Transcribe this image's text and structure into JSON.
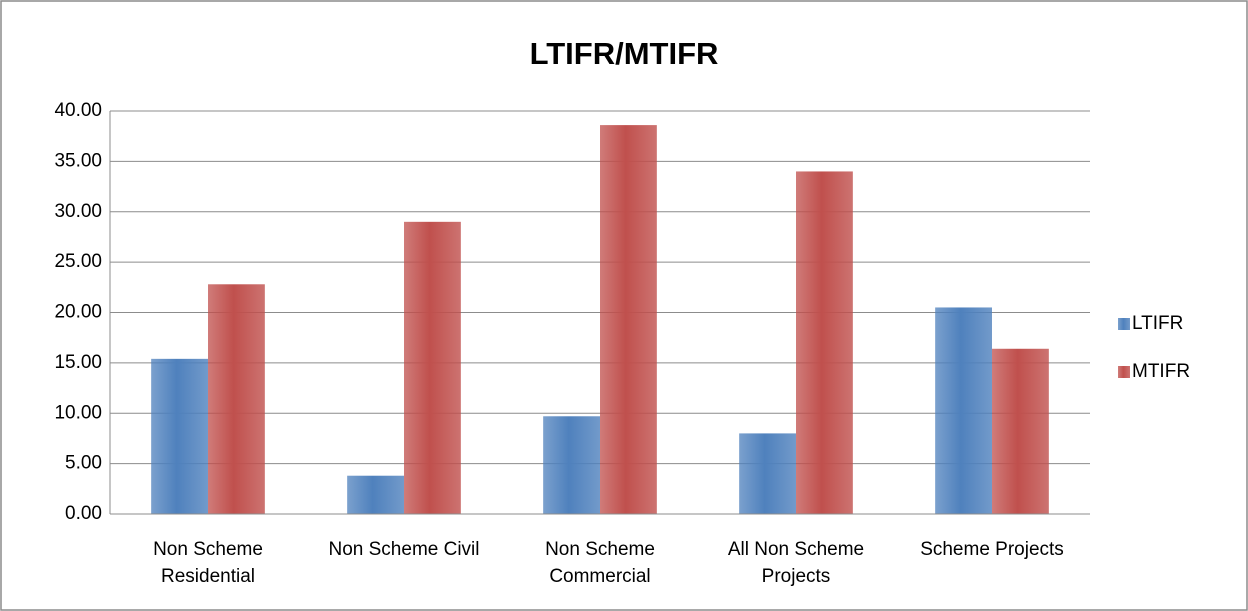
{
  "chart_data": {
    "type": "bar",
    "title": "LTIFR/MTIFR",
    "categories": [
      "Non Scheme Residential",
      "Non Scheme Civil",
      "Non Scheme Commercial",
      "All Non Scheme Projects",
      "Scheme Projects"
    ],
    "series": [
      {
        "name": "LTIFR",
        "color": "#4f81bd",
        "values": [
          15.4,
          3.8,
          9.7,
          8.0,
          20.5
        ]
      },
      {
        "name": "MTIFR",
        "color": "#c0504d",
        "values": [
          22.8,
          29.0,
          38.6,
          34.0,
          16.4
        ]
      }
    ],
    "ylim": [
      0,
      40
    ],
    "yticks": [
      {
        "value": 0,
        "label": "0.00"
      },
      {
        "value": 5,
        "label": "5.00"
      },
      {
        "value": 10,
        "label": "10.00"
      },
      {
        "value": 15,
        "label": "15.00"
      },
      {
        "value": 20,
        "label": "20.00"
      },
      {
        "value": 25,
        "label": "25.00"
      },
      {
        "value": 30,
        "label": "30.00"
      },
      {
        "value": 35,
        "label": "35.00"
      },
      {
        "value": 40,
        "label": "40.00"
      }
    ],
    "grid": true,
    "legend": "right"
  }
}
